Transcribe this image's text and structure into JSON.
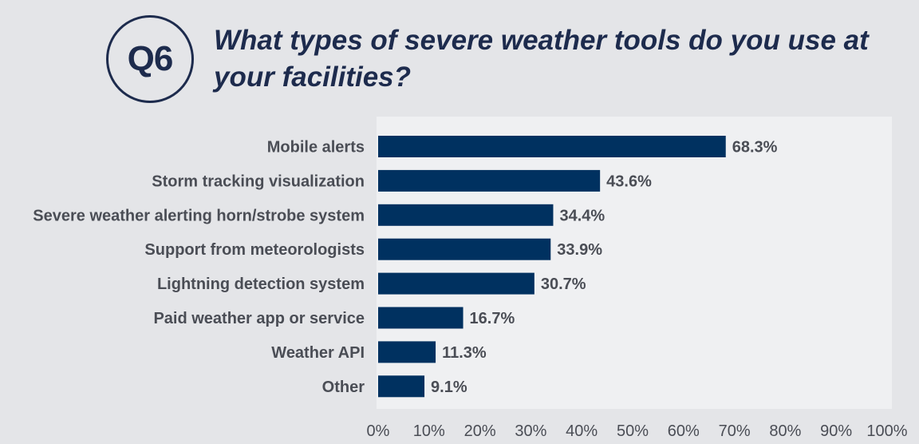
{
  "badge": {
    "label": "Q6"
  },
  "title_lines": [
    "What types of severe weather tools do you use at",
    "your facilities?"
  ],
  "colors": {
    "background": "#e4e5e8",
    "plot_background": "#eff0f2",
    "bar": "#003160",
    "title": "#1d2b4d",
    "text": "#4a4d55"
  },
  "chart_data": {
    "type": "bar",
    "orientation": "horizontal",
    "title": "What types of severe weather tools do you use at your facilities?",
    "categories": [
      "Mobile alerts",
      "Storm tracking visualization",
      "Severe weather alerting horn/strobe system",
      "Support from meteorologists",
      "Lightning detection system",
      "Paid weather app or service",
      "Weather API",
      "Other"
    ],
    "values": [
      68.3,
      43.6,
      34.4,
      33.9,
      30.7,
      16.7,
      11.3,
      9.1
    ],
    "value_labels": [
      "68.3%",
      "43.6%",
      "34.4%",
      "33.9%",
      "30.7%",
      "16.7%",
      "11.3%",
      "9.1%"
    ],
    "xlim": [
      0,
      100
    ],
    "x_ticks": [
      0,
      10,
      20,
      30,
      40,
      50,
      60,
      70,
      80,
      90,
      100
    ],
    "x_tick_labels": [
      "0%",
      "10%",
      "20%",
      "30%",
      "40%",
      "50%",
      "60%",
      "70%",
      "80%",
      "90%",
      "100%"
    ],
    "grid": false,
    "legend": "none"
  }
}
